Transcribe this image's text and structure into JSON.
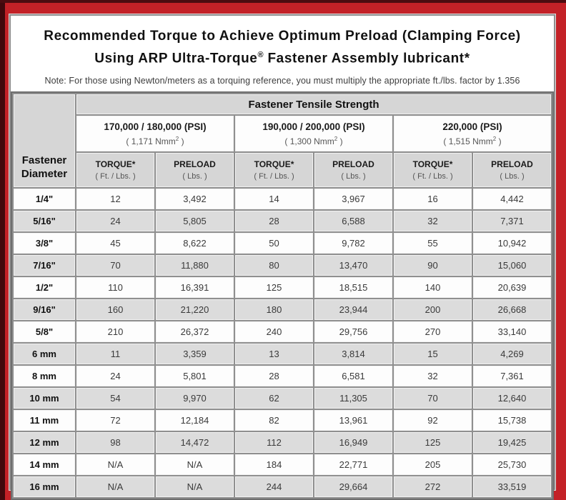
{
  "colors": {
    "frame_red": "#c32127",
    "frame_dark_edge": "#40080c",
    "grid_gray": "#8f8f8f",
    "header_cell_gray": "#d6d6d6",
    "row_gray": "#dcdcdc"
  },
  "title": {
    "line1": "Recommended Torque to Achieve Optimum Preload (Clamping Force)",
    "line2_before_mark": "Using ARP Ultra-Torque",
    "registered_mark": "®",
    "line2_after_mark": " Fastener Assembly lubricant*"
  },
  "note": "Note: For those using Newton/meters as a torquing reference, you must multiply the appropriate ft./lbs. factor by 1.356",
  "table": {
    "corner_header": "Fastener Diameter",
    "tensile_header": "Fastener Tensile Strength",
    "groups": [
      {
        "psi": "170,000 / 180,000 (PSI)",
        "nmm_value": "( 1,171 Nmm",
        "nmm_sup": "2",
        "nmm_close": " )"
      },
      {
        "psi": "190,000 / 200,000 (PSI)",
        "nmm_value": "( 1,300 Nmm",
        "nmm_sup": "2",
        "nmm_close": " )"
      },
      {
        "psi": "220,000 (PSI)",
        "nmm_value": "( 1,515 Nmm",
        "nmm_sup": "2",
        "nmm_close": " )"
      }
    ],
    "sub_headers": {
      "torque_label": "TORQUE*",
      "torque_unit": "( Ft. / Lbs. )",
      "preload_label": "PRELOAD",
      "preload_unit": "( Lbs. )"
    },
    "rows": [
      {
        "diameter": "1/4\"",
        "values": [
          "12",
          "3,492",
          "14",
          "3,967",
          "16",
          "4,442"
        ]
      },
      {
        "diameter": "5/16\"",
        "values": [
          "24",
          "5,805",
          "28",
          "6,588",
          "32",
          "7,371"
        ]
      },
      {
        "diameter": "3/8\"",
        "values": [
          "45",
          "8,622",
          "50",
          "9,782",
          "55",
          "10,942"
        ]
      },
      {
        "diameter": "7/16\"",
        "values": [
          "70",
          "11,880",
          "80",
          "13,470",
          "90",
          "15,060"
        ]
      },
      {
        "diameter": "1/2\"",
        "values": [
          "110",
          "16,391",
          "125",
          "18,515",
          "140",
          "20,639"
        ]
      },
      {
        "diameter": "9/16\"",
        "values": [
          "160",
          "21,220",
          "180",
          "23,944",
          "200",
          "26,668"
        ]
      },
      {
        "diameter": "5/8\"",
        "values": [
          "210",
          "26,372",
          "240",
          "29,756",
          "270",
          "33,140"
        ]
      },
      {
        "diameter": "6 mm",
        "values": [
          "11",
          "3,359",
          "13",
          "3,814",
          "15",
          "4,269"
        ]
      },
      {
        "diameter": "8 mm",
        "values": [
          "24",
          "5,801",
          "28",
          "6,581",
          "32",
          "7,361"
        ]
      },
      {
        "diameter": "10 mm",
        "values": [
          "54",
          "9,970",
          "62",
          "11,305",
          "70",
          "12,640"
        ]
      },
      {
        "diameter": "11 mm",
        "values": [
          "72",
          "12,184",
          "82",
          "13,961",
          "92",
          "15,738"
        ]
      },
      {
        "diameter": "12 mm",
        "values": [
          "98",
          "14,472",
          "112",
          "16,949",
          "125",
          "19,425"
        ]
      },
      {
        "diameter": "14 mm",
        "values": [
          "N/A",
          "N/A",
          "184",
          "22,771",
          "205",
          "25,730"
        ]
      },
      {
        "diameter": "16 mm",
        "values": [
          "N/A",
          "N/A",
          "244",
          "29,664",
          "272",
          "33,519"
        ]
      }
    ]
  }
}
